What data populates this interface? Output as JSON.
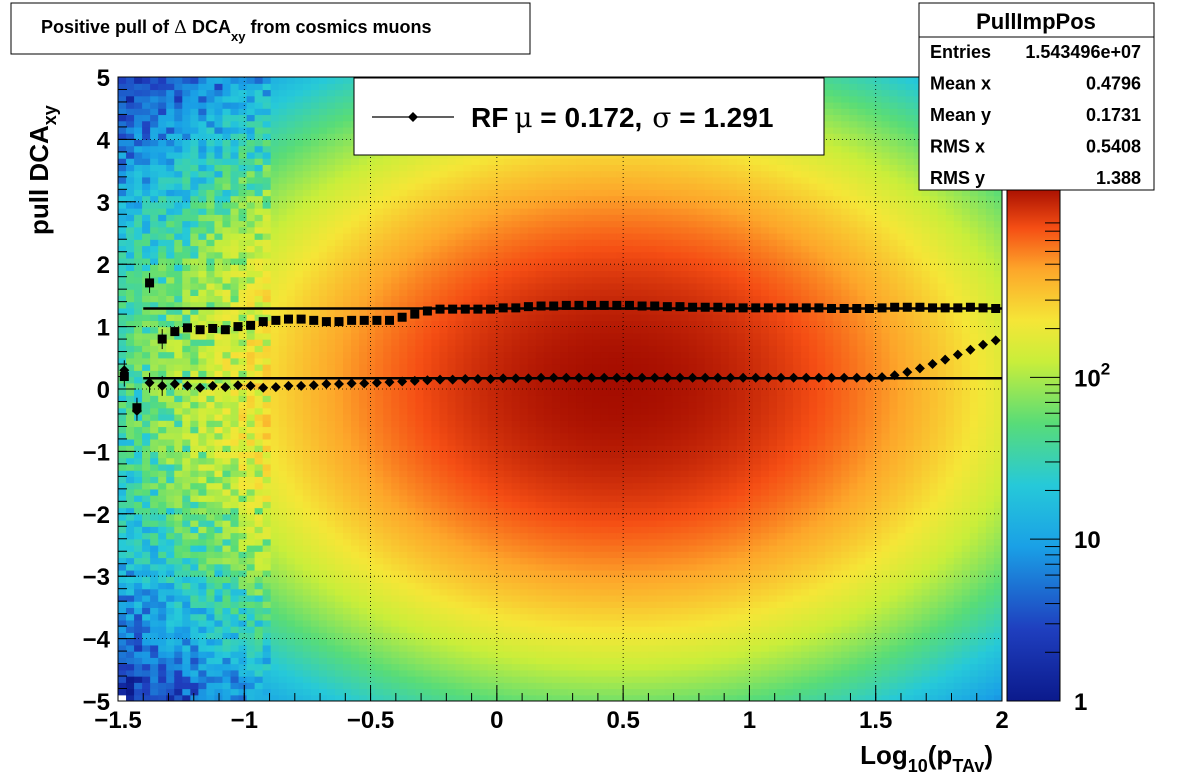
{
  "title": {
    "prefix": "Positive pull of ",
    "delta": "Δ",
    "main": " DCA",
    "sub": "xy",
    "suffix": "  from cosmics muons"
  },
  "stats": {
    "name": "PullImpPos",
    "rows": [
      {
        "label": "Entries",
        "value": "1.543496e+07"
      },
      {
        "label": "Mean x",
        "value": "0.4796"
      },
      {
        "label": "Mean y",
        "value": "0.1731"
      },
      {
        "label": "RMS x",
        "value": "0.5408"
      },
      {
        "label": "RMS y",
        "value": "1.388"
      }
    ]
  },
  "legend": {
    "entry": "RF",
    "mu_symbol": "μ",
    "mu_text": " =  0.172,",
    "sigma_symbol": "σ",
    "sigma_text": " =   1.291"
  },
  "colorbar": {
    "labels": [
      {
        "value": 1,
        "text": "1",
        "sup": ""
      },
      {
        "value": 10,
        "text": "10",
        "sup": ""
      },
      {
        "value": 100,
        "text": "10",
        "sup": "2"
      }
    ],
    "zrange": [
      1,
      1500
    ],
    "log": true
  },
  "chart_data": {
    "type": "heatmap",
    "title": "Positive pull of Δ DCA_xy from cosmics muons",
    "xlabel": "Log10(pTAv)",
    "ylabel": "pull DCAxy",
    "xlim": [
      -1.5,
      2
    ],
    "ylim": [
      -5,
      5
    ],
    "grid": true,
    "z_log": true,
    "x_ticks": [
      {
        "v": -1.5,
        "t": "−1.5"
      },
      {
        "v": -1,
        "t": "−1"
      },
      {
        "v": -0.5,
        "t": "−0.5"
      },
      {
        "v": 0,
        "t": "0"
      },
      {
        "v": 0.5,
        "t": "0.5"
      },
      {
        "v": 1,
        "t": "1"
      },
      {
        "v": 1.5,
        "t": "1.5"
      },
      {
        "v": 2,
        "t": "2"
      }
    ],
    "y_ticks": [
      {
        "v": 5,
        "t": "5"
      },
      {
        "v": 4,
        "t": "4"
      },
      {
        "v": 3,
        "t": "3"
      },
      {
        "v": 2,
        "t": "2"
      },
      {
        "v": 1,
        "t": "1"
      },
      {
        "v": 0,
        "t": "0"
      },
      {
        "v": -1,
        "t": "−1"
      },
      {
        "v": -2,
        "t": "−2"
      },
      {
        "v": -3,
        "t": "−3"
      },
      {
        "v": -4,
        "t": "−4"
      },
      {
        "v": -5,
        "t": "−5"
      }
    ],
    "density": {
      "mean_x": 0.4796,
      "mean_y": 0.1731,
      "rms_x": 0.5408,
      "rms_y": 1.388,
      "peak": 1500
    },
    "fit_lines": {
      "mu": 0.172,
      "sigma": 1.291,
      "x_from": -1.4,
      "x_to": 2
    },
    "series": [
      {
        "name": "mean",
        "marker": "diamond",
        "x": [
          -1.475,
          -1.425,
          -1.375,
          -1.325,
          -1.275,
          -1.225,
          -1.175,
          -1.125,
          -1.075,
          -1.025,
          -0.975,
          -0.925,
          -0.875,
          -0.825,
          -0.775,
          -0.725,
          -0.675,
          -0.625,
          -0.575,
          -0.525,
          -0.475,
          -0.425,
          -0.375,
          -0.325,
          -0.275,
          -0.225,
          -0.175,
          -0.125,
          -0.075,
          -0.025,
          0.025,
          0.075,
          0.125,
          0.175,
          0.225,
          0.275,
          0.325,
          0.375,
          0.425,
          0.475,
          0.525,
          0.575,
          0.625,
          0.675,
          0.725,
          0.775,
          0.825,
          0.875,
          0.925,
          0.975,
          1.025,
          1.075,
          1.125,
          1.175,
          1.225,
          1.275,
          1.325,
          1.375,
          1.425,
          1.475,
          1.525,
          1.575,
          1.625,
          1.675,
          1.725,
          1.775,
          1.825,
          1.875,
          1.925,
          1.975
        ],
        "values": [
          0.3,
          -0.35,
          0.1,
          0.05,
          0.08,
          0.05,
          0.02,
          0.05,
          0.03,
          0.06,
          0.05,
          0.02,
          0.03,
          0.05,
          0.05,
          0.06,
          0.08,
          0.08,
          0.09,
          0.09,
          0.1,
          0.11,
          0.12,
          0.13,
          0.14,
          0.15,
          0.15,
          0.16,
          0.16,
          0.16,
          0.17,
          0.17,
          0.17,
          0.18,
          0.18,
          0.18,
          0.18,
          0.18,
          0.18,
          0.18,
          0.18,
          0.18,
          0.18,
          0.18,
          0.18,
          0.18,
          0.18,
          0.18,
          0.18,
          0.18,
          0.18,
          0.18,
          0.18,
          0.18,
          0.18,
          0.18,
          0.18,
          0.18,
          0.18,
          0.18,
          0.19,
          0.22,
          0.27,
          0.33,
          0.4,
          0.47,
          0.55,
          0.63,
          0.71,
          0.78
        ]
      },
      {
        "name": "sigma",
        "marker": "square",
        "x": [
          -1.475,
          -1.425,
          -1.375,
          -1.325,
          -1.275,
          -1.225,
          -1.175,
          -1.125,
          -1.075,
          -1.025,
          -0.975,
          -0.925,
          -0.875,
          -0.825,
          -0.775,
          -0.725,
          -0.675,
          -0.625,
          -0.575,
          -0.525,
          -0.475,
          -0.425,
          -0.375,
          -0.325,
          -0.275,
          -0.225,
          -0.175,
          -0.125,
          -0.075,
          -0.025,
          0.025,
          0.075,
          0.125,
          0.175,
          0.225,
          0.275,
          0.325,
          0.375,
          0.425,
          0.475,
          0.525,
          0.575,
          0.625,
          0.675,
          0.725,
          0.775,
          0.825,
          0.875,
          0.925,
          0.975,
          1.025,
          1.075,
          1.125,
          1.175,
          1.225,
          1.275,
          1.325,
          1.375,
          1.425,
          1.475,
          1.525,
          1.575,
          1.625,
          1.675,
          1.725,
          1.775,
          1.825,
          1.875,
          1.925,
          1.975
        ],
        "values": [
          0.2,
          -0.3,
          1.7,
          0.8,
          0.92,
          0.98,
          0.95,
          0.97,
          0.95,
          1.0,
          1.02,
          1.08,
          1.1,
          1.12,
          1.12,
          1.1,
          1.08,
          1.08,
          1.1,
          1.1,
          1.1,
          1.1,
          1.15,
          1.2,
          1.25,
          1.28,
          1.28,
          1.28,
          1.28,
          1.28,
          1.3,
          1.3,
          1.32,
          1.33,
          1.33,
          1.34,
          1.34,
          1.34,
          1.34,
          1.34,
          1.34,
          1.33,
          1.33,
          1.32,
          1.32,
          1.31,
          1.31,
          1.31,
          1.3,
          1.3,
          1.3,
          1.3,
          1.3,
          1.3,
          1.3,
          1.3,
          1.29,
          1.29,
          1.29,
          1.29,
          1.3,
          1.31,
          1.31,
          1.31,
          1.3,
          1.3,
          1.3,
          1.31,
          1.3,
          1.29
        ]
      }
    ]
  }
}
